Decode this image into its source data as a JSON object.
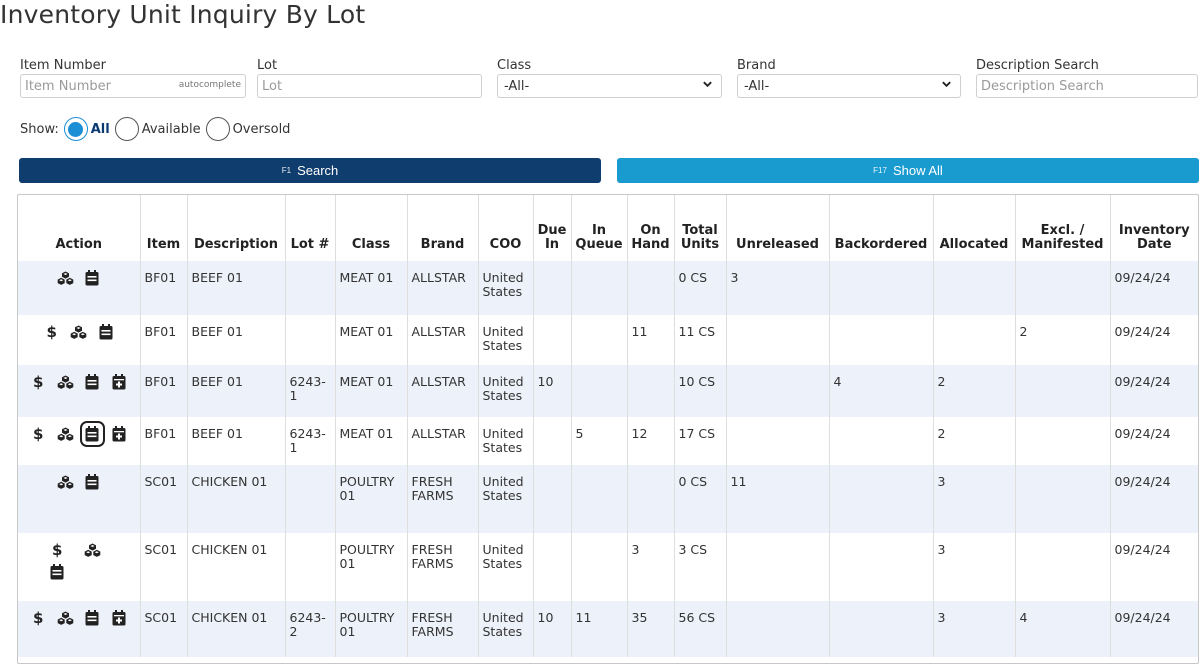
{
  "page": {
    "title": "Inventory Unit Inquiry By Lot"
  },
  "filters": {
    "item_number": {
      "label": "Item Number",
      "placeholder": "Item Number",
      "hint": "autocomplete"
    },
    "lot": {
      "label": "Lot",
      "placeholder": "Lot"
    },
    "class": {
      "label": "Class",
      "value": "-All-"
    },
    "brand": {
      "label": "Brand",
      "value": "-All-"
    },
    "description_search": {
      "label": "Description Search",
      "placeholder": "Description Search"
    }
  },
  "show": {
    "label": "Show:",
    "options": [
      {
        "label": "All",
        "selected": true
      },
      {
        "label": "Available",
        "selected": false
      },
      {
        "label": "Oversold",
        "selected": false
      }
    ]
  },
  "buttons": {
    "search": {
      "key": "F1",
      "label": "Search"
    },
    "show_all": {
      "key": "F17",
      "label": "Show All"
    }
  },
  "table": {
    "headers": {
      "action": "Action",
      "item": "Item",
      "description": "Description",
      "lot": "Lot #",
      "class": "Class",
      "brand": "Brand",
      "coo": "COO",
      "due_in": "Due In",
      "in_queue": "In Queue",
      "on_hand": "On Hand",
      "total_units": "Total Units",
      "unreleased": "Unreleased",
      "backordered": "Backordered",
      "allocated": "Allocated",
      "excl_manifested": "Excl. / Manifested",
      "inventory_date": "Inventory Date"
    },
    "rows": [
      {
        "actions": [
          "cubes",
          "calendar"
        ],
        "item": "BF01",
        "description": "BEEF 01",
        "lot": "",
        "class": "MEAT 01",
        "brand": "ALLSTAR",
        "coo": "United States",
        "due_in": "",
        "in_queue": "",
        "on_hand": "",
        "total_units": "0 CS",
        "unreleased": "3",
        "backordered": "",
        "allocated": "",
        "excl_manifested": "",
        "inventory_date": "09/24/24"
      },
      {
        "actions": [
          "dollar",
          "cubes",
          "calendar"
        ],
        "item": "BF01",
        "description": "BEEF 01",
        "lot": "",
        "class": "MEAT 01",
        "brand": "ALLSTAR",
        "coo": "United States",
        "due_in": "",
        "in_queue": "",
        "on_hand": "11",
        "total_units": "11 CS",
        "unreleased": "",
        "backordered": "",
        "allocated": "",
        "excl_manifested": "2",
        "inventory_date": "09/24/24"
      },
      {
        "actions": [
          "dollar",
          "cubes",
          "calendar",
          "calendar-plus"
        ],
        "item": "BF01",
        "description": "BEEF 01",
        "lot": "6243-1",
        "class": "MEAT 01",
        "brand": "ALLSTAR",
        "coo": "United States",
        "due_in": "10",
        "in_queue": "",
        "on_hand": "",
        "total_units": "10 CS",
        "unreleased": "",
        "backordered": "4",
        "allocated": "2",
        "excl_manifested": "",
        "inventory_date": "09/24/24"
      },
      {
        "actions": [
          "dollar",
          "cubes",
          "calendar-focused",
          "calendar-plus"
        ],
        "item": "BF01",
        "description": "BEEF 01",
        "lot": "6243-1",
        "class": "MEAT 01",
        "brand": "ALLSTAR",
        "coo": "United States",
        "due_in": "",
        "in_queue": "5",
        "on_hand": "12",
        "total_units": "17 CS",
        "unreleased": "",
        "backordered": "",
        "allocated": "2",
        "excl_manifested": "",
        "inventory_date": "09/24/24"
      },
      {
        "actions": [
          "cubes",
          "calendar"
        ],
        "item": "SC01",
        "description": "CHICKEN 01",
        "lot": "",
        "class": "POULTRY 01",
        "brand": "FRESH FARMS",
        "coo": "United States",
        "due_in": "",
        "in_queue": "",
        "on_hand": "",
        "total_units": "0 CS",
        "unreleased": "11",
        "backordered": "",
        "allocated": "3",
        "excl_manifested": "",
        "inventory_date": "09/24/24"
      },
      {
        "actions": [
          "dollar",
          "cubes",
          "calendar"
        ],
        "item": "SC01",
        "description": "CHICKEN 01",
        "lot": "",
        "class": "POULTRY 01",
        "brand": "FRESH FARMS",
        "coo": "United States",
        "due_in": "",
        "in_queue": "",
        "on_hand": "3",
        "total_units": "3 CS",
        "unreleased": "",
        "backordered": "",
        "allocated": "3",
        "excl_manifested": "",
        "inventory_date": "09/24/24"
      },
      {
        "actions": [
          "dollar",
          "cubes",
          "calendar",
          "calendar-plus"
        ],
        "item": "SC01",
        "description": "CHICKEN 01",
        "lot": "6243-2",
        "class": "POULTRY 01",
        "brand": "FRESH FARMS",
        "coo": "United States",
        "due_in": "10",
        "in_queue": "11",
        "on_hand": "35",
        "total_units": "56 CS",
        "unreleased": "",
        "backordered": "",
        "allocated": "3",
        "excl_manifested": "4",
        "inventory_date": "09/24/24"
      }
    ]
  }
}
